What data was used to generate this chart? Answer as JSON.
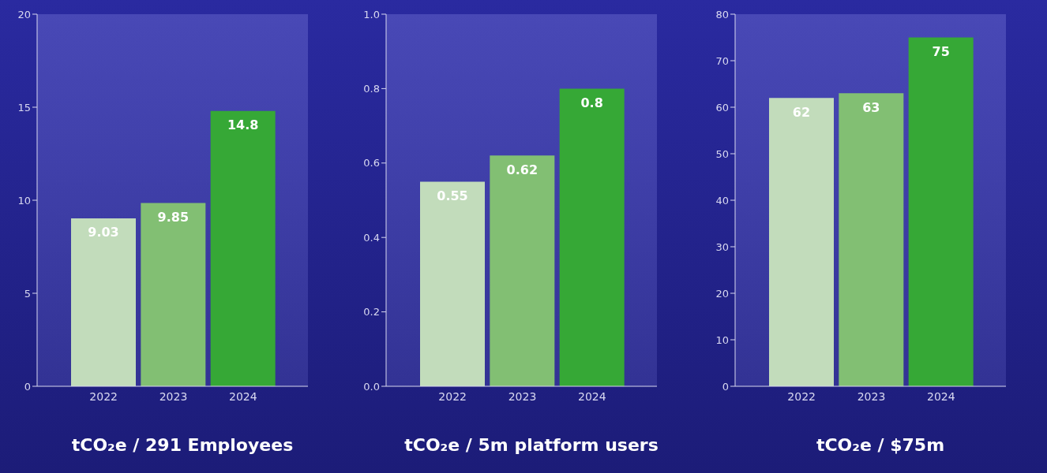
{
  "chart_data": [
    {
      "type": "bar",
      "xlabel": "tCO₂e / 291 Employees",
      "categories": [
        "2022",
        "2023",
        "2024"
      ],
      "values": [
        9.03,
        9.85,
        14.8
      ],
      "colors": [
        "#c2dcbb",
        "#82bf73",
        "#36a836"
      ],
      "ylim": [
        0,
        20
      ],
      "yticks": [
        0,
        5,
        10,
        15,
        20
      ],
      "data_labels": true,
      "grid": false,
      "legend": false
    },
    {
      "type": "bar",
      "xlabel": "tCO₂e / 5m platform users",
      "categories": [
        "2022",
        "2023",
        "2024"
      ],
      "values": [
        0.55,
        0.62,
        0.8
      ],
      "colors": [
        "#c2dcbb",
        "#82bf73",
        "#36a836"
      ],
      "ylim": [
        0,
        1
      ],
      "yticks": [
        {
          "value": 0,
          "label": "0.0"
        },
        0.2,
        0.4,
        0.6,
        0.8,
        {
          "value": 1,
          "label": "1.0"
        }
      ],
      "data_labels": true,
      "grid": false,
      "legend": false
    },
    {
      "type": "bar",
      "xlabel": "tCO₂e / $75m",
      "categories": [
        "2022",
        "2023",
        "2024"
      ],
      "values": [
        62,
        63,
        75
      ],
      "colors": [
        "#c2dcbb",
        "#82bf73",
        "#36a836"
      ],
      "ylim": [
        0,
        80
      ],
      "yticks": [
        0,
        10,
        20,
        30,
        40,
        50,
        60,
        70,
        80
      ],
      "data_labels": true,
      "grid": false,
      "legend": false
    }
  ]
}
